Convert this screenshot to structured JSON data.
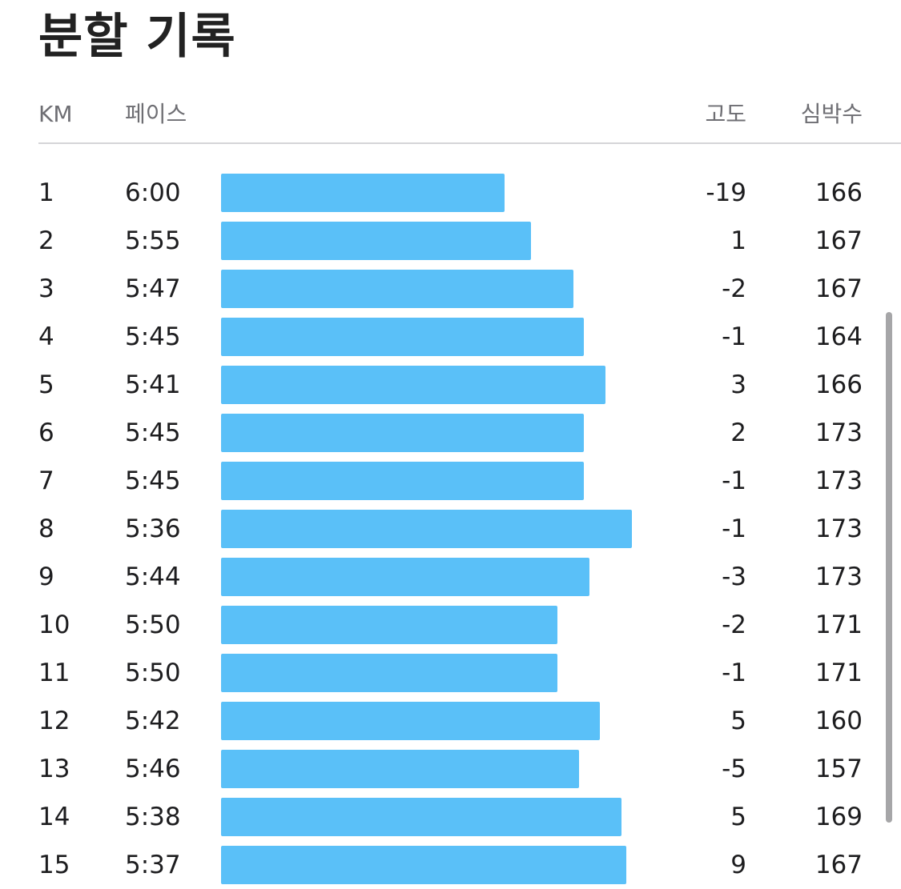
{
  "title": "분할 기록",
  "columns": {
    "km": "KM",
    "pace": "페이스",
    "elevation": "고도",
    "heart_rate": "심박수"
  },
  "accent_color": "#5ac0f8",
  "splits": [
    {
      "km": "1",
      "pace": "6:00",
      "pace_seconds": 360,
      "elevation": "-19",
      "heart_rate": "166"
    },
    {
      "km": "2",
      "pace": "5:55",
      "pace_seconds": 355,
      "elevation": "1",
      "heart_rate": "167"
    },
    {
      "km": "3",
      "pace": "5:47",
      "pace_seconds": 347,
      "elevation": "-2",
      "heart_rate": "167"
    },
    {
      "km": "4",
      "pace": "5:45",
      "pace_seconds": 345,
      "elevation": "-1",
      "heart_rate": "164"
    },
    {
      "km": "5",
      "pace": "5:41",
      "pace_seconds": 341,
      "elevation": "3",
      "heart_rate": "166"
    },
    {
      "km": "6",
      "pace": "5:45",
      "pace_seconds": 345,
      "elevation": "2",
      "heart_rate": "173"
    },
    {
      "km": "7",
      "pace": "5:45",
      "pace_seconds": 345,
      "elevation": "-1",
      "heart_rate": "173"
    },
    {
      "km": "8",
      "pace": "5:36",
      "pace_seconds": 336,
      "elevation": "-1",
      "heart_rate": "173"
    },
    {
      "km": "9",
      "pace": "5:44",
      "pace_seconds": 344,
      "elevation": "-3",
      "heart_rate": "173"
    },
    {
      "km": "10",
      "pace": "5:50",
      "pace_seconds": 350,
      "elevation": "-2",
      "heart_rate": "171"
    },
    {
      "km": "11",
      "pace": "5:50",
      "pace_seconds": 350,
      "elevation": "-1",
      "heart_rate": "171"
    },
    {
      "km": "12",
      "pace": "5:42",
      "pace_seconds": 342,
      "elevation": "5",
      "heart_rate": "160"
    },
    {
      "km": "13",
      "pace": "5:46",
      "pace_seconds": 346,
      "elevation": "-5",
      "heart_rate": "157"
    },
    {
      "km": "14",
      "pace": "5:38",
      "pace_seconds": 338,
      "elevation": "5",
      "heart_rate": "169"
    },
    {
      "km": "15",
      "pace": "5:37",
      "pace_seconds": 337,
      "elevation": "9",
      "heart_rate": "167"
    }
  ]
}
